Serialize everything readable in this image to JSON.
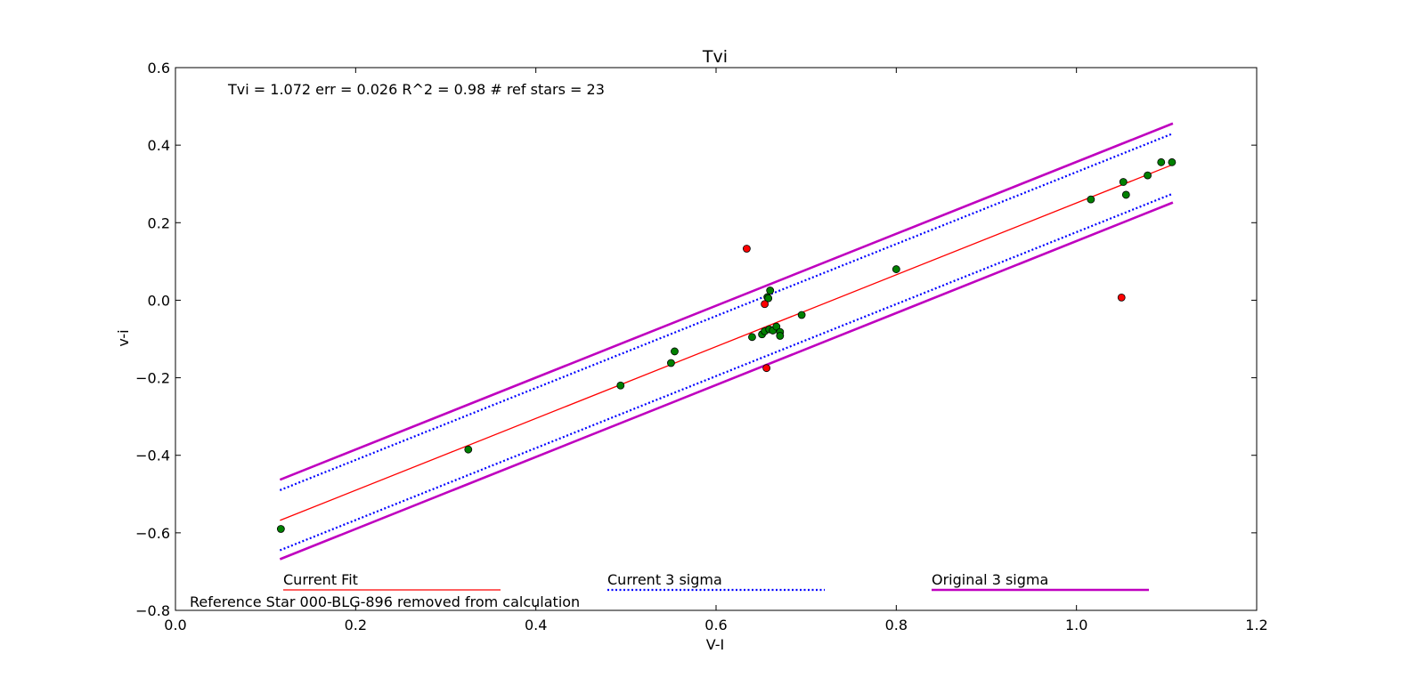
{
  "chart_data": {
    "type": "scatter",
    "title": "Tvi",
    "xlabel": "V-I",
    "ylabel": "v-i",
    "xlim": [
      0.0,
      1.2
    ],
    "ylim": [
      -0.8,
      0.6
    ],
    "xticks": [
      "0.0",
      "0.2",
      "0.4",
      "0.6",
      "0.8",
      "1.0",
      "1.2"
    ],
    "yticks": [
      "0.6",
      "0.4",
      "0.2",
      "0.0",
      "−0.2",
      "−0.4",
      "−0.6",
      "−0.8"
    ],
    "xtick_values": [
      0.0,
      0.2,
      0.4,
      0.6,
      0.8,
      1.0,
      1.2
    ],
    "ytick_values": [
      0.6,
      0.4,
      0.2,
      0.0,
      -0.2,
      -0.4,
      -0.6,
      -0.8
    ],
    "grid": false,
    "fit_annotation": "Tvi =  1.072 err = 0.026  R^2 = 0.98  # ref stars =  23",
    "removed_note": "Reference Star 000-BLG-896 removed from calculation",
    "legend": [
      {
        "label": "Current Fit",
        "color": "#ff0000",
        "style": "solid-thin"
      },
      {
        "label": "Current 3 sigma",
        "color": "#0000ff",
        "style": "dotted"
      },
      {
        "label": "Original 3 sigma",
        "color": "#bf00bf",
        "style": "solid-thick"
      }
    ],
    "lines": [
      {
        "label": "Current Fit",
        "color": "#ff0000",
        "x": [
          0.116,
          1.107
        ],
        "y": [
          -0.568,
          0.35
        ]
      },
      {
        "label": "Current 3 sigma",
        "color": "#0000ff",
        "x": [
          0.116,
          1.107
        ],
        "y": [
          -0.49,
          0.43
        ]
      },
      {
        "label": "Current 3 sigma",
        "color": "#0000ff",
        "x": [
          0.116,
          1.107
        ],
        "y": [
          -0.645,
          0.275
        ]
      },
      {
        "label": "Original 3 sigma",
        "color": "#bf00bf",
        "x": [
          0.116,
          1.107
        ],
        "y": [
          -0.463,
          0.456
        ]
      },
      {
        "label": "Original 3 sigma",
        "color": "#bf00bf",
        "x": [
          0.116,
          1.107
        ],
        "y": [
          -0.668,
          0.252
        ]
      }
    ],
    "series": [
      {
        "color": "#008000",
        "points": [
          [
            0.117,
            -0.59
          ],
          [
            0.325,
            -0.385
          ],
          [
            0.494,
            -0.22
          ],
          [
            0.55,
            -0.162
          ],
          [
            0.554,
            -0.132
          ],
          [
            0.64,
            -0.095
          ],
          [
            0.651,
            -0.088
          ],
          [
            0.654,
            -0.08
          ],
          [
            0.659,
            -0.075
          ],
          [
            0.663,
            -0.078
          ],
          [
            0.667,
            -0.068
          ],
          [
            0.671,
            -0.082
          ],
          [
            0.671,
            -0.092
          ],
          [
            0.657,
            0.008
          ],
          [
            0.658,
            0.005
          ],
          [
            0.66,
            0.025
          ],
          [
            0.695,
            -0.038
          ],
          [
            0.8,
            0.08
          ],
          [
            1.016,
            0.26
          ],
          [
            1.052,
            0.305
          ],
          [
            1.055,
            0.272
          ],
          [
            1.079,
            0.322
          ],
          [
            1.094,
            0.356
          ],
          [
            1.106,
            0.356
          ]
        ]
      },
      {
        "color": "#ff0000",
        "points": [
          [
            0.634,
            0.133
          ],
          [
            0.654,
            -0.01
          ],
          [
            0.656,
            -0.175
          ],
          [
            1.05,
            0.007
          ]
        ]
      }
    ]
  }
}
